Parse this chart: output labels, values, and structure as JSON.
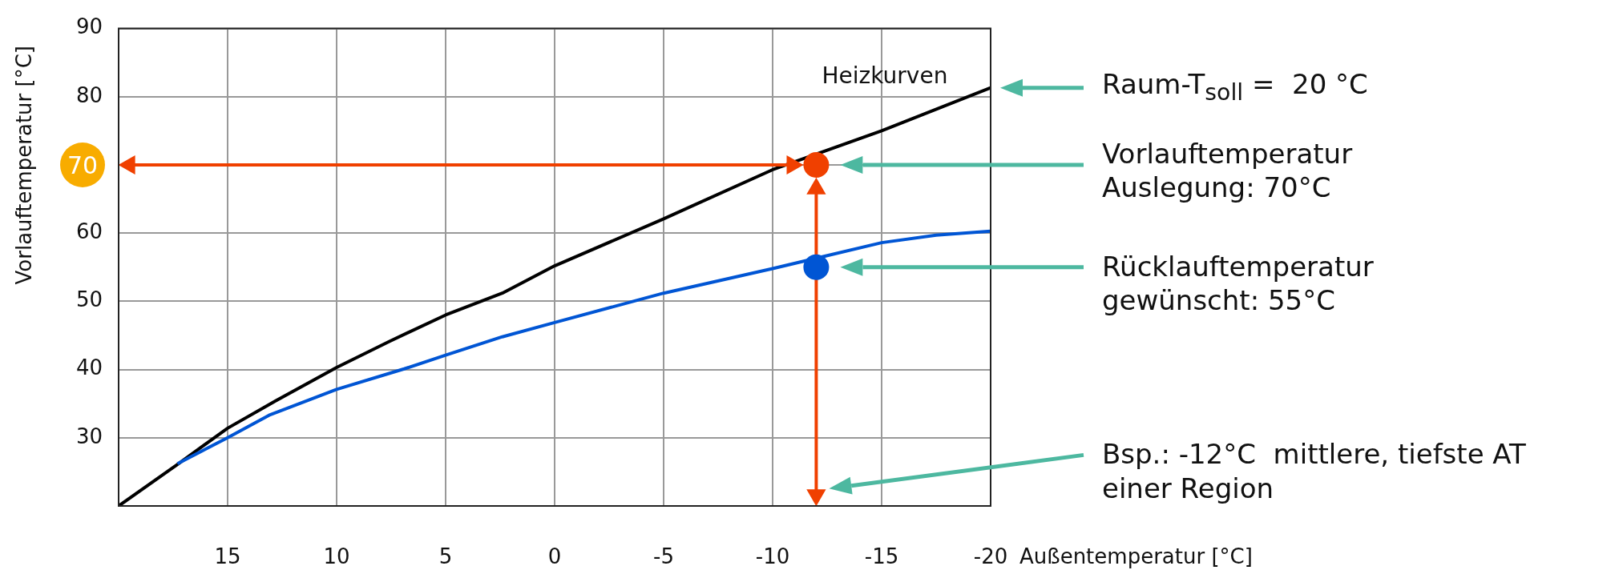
{
  "chart_data": {
    "type": "line",
    "xlabel": "Außentemperatur [°C]",
    "ylabel": "Vorlauftemperatur [°C]",
    "xlim": [
      20,
      -20
    ],
    "xticks": [
      15,
      10,
      5,
      0,
      -5,
      -10,
      -15,
      -20
    ],
    "ylim": [
      20,
      90
    ],
    "yticks": [
      30,
      40,
      50,
      60,
      {
        "value": 70,
        "label": null
      },
      80,
      90
    ],
    "grid": true,
    "series": [
      {
        "color": "#000000",
        "marker": "none",
        "x": [
          20,
          17.3,
          15,
          12.8,
          10,
          7.6,
          5,
          2.4,
          0,
          -5,
          -10,
          -15,
          -20
        ],
        "values": [
          20,
          26.1,
          31.4,
          35.4,
          40.3,
          44.1,
          48,
          51.2,
          55.2,
          62.1,
          69.3,
          75,
          81.3
        ]
      },
      {
        "color": "#0055d4",
        "marker": "none",
        "x": [
          17.3,
          15,
          13.1,
          10,
          6.9,
          5,
          2.4,
          0,
          -5,
          -10,
          -15,
          -17.5,
          -20
        ],
        "values": [
          26.2,
          30,
          33.3,
          37.1,
          40.1,
          42.1,
          44.8,
          46.9,
          51.2,
          54.8,
          58.6,
          59.7,
          60.3
        ]
      },
      {
        "color": "#f04000",
        "marker": "triangle",
        "x": [
          19.5,
          -10.9
        ],
        "values": [
          70,
          70
        ]
      },
      {
        "color": "#f04000",
        "marker": "triangle",
        "x": [
          -12,
          -12
        ],
        "values": [
          21.6,
          66.5
        ]
      },
      {
        "type": "scatter",
        "color": "#f04000",
        "marker": "circle",
        "x": [
          -12
        ],
        "values": [
          70
        ]
      },
      {
        "type": "scatter",
        "color": "#0055d4",
        "marker": "circle",
        "x": [
          -12
        ],
        "values": [
          55
        ]
      }
    ],
    "annotations": [
      "Heizkurven",
      "70",
      "Raum-T$_{soll}$ =  20 °C",
      "Vorlauftemperatur\nAuslegung: 70°C",
      "Rücklauftemperatur\ngewünscht: 55°C",
      "Bsp.: -12°C  mittlere, tiefste AT\neiner Region"
    ]
  }
}
